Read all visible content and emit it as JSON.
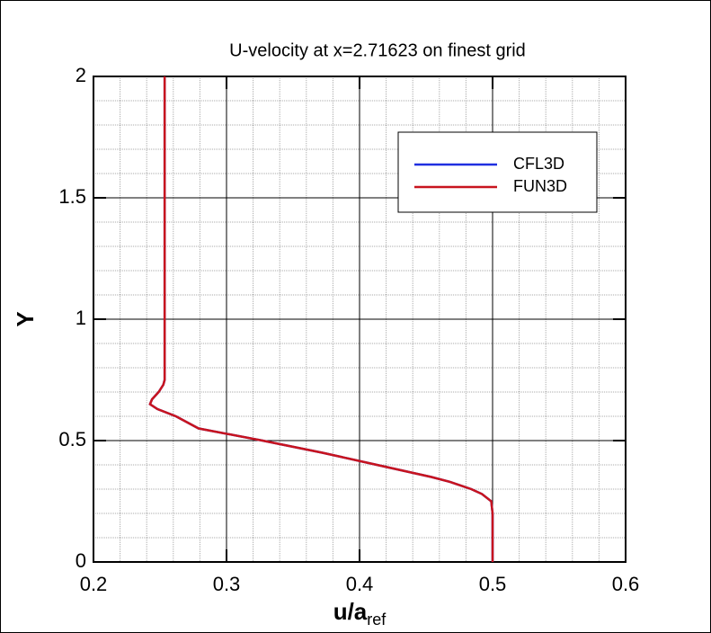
{
  "chart_data": {
    "type": "line",
    "title": "U-velocity at x=2.71623 on finest grid",
    "x_label": {
      "main": "u/a",
      "sub": "ref"
    },
    "y_label": "Y",
    "xlim": [
      0.2,
      0.6
    ],
    "xticks": [
      0.2,
      0.3,
      0.4,
      0.5,
      0.6
    ],
    "ylim": [
      0,
      2
    ],
    "yticks": [
      0,
      0.5,
      1,
      1.5,
      2
    ],
    "grid": true,
    "minor_grid_divisions": 5,
    "legend": "upper right",
    "series": [
      {
        "name": "CFL3D",
        "color": "#1f2fe0",
        "x": [
          0.5,
          0.5,
          0.499,
          0.492,
          0.484,
          0.468,
          0.454,
          0.413,
          0.372,
          0.327,
          0.279,
          0.262,
          0.248,
          0.2425,
          0.244,
          0.249,
          0.2525,
          0.2535,
          0.2535,
          0.2535,
          0.2535,
          0.2535
        ],
        "values": [
          0,
          0.2,
          0.25,
          0.28,
          0.3,
          0.33,
          0.35,
          0.4,
          0.45,
          0.5,
          0.55,
          0.6,
          0.63,
          0.65,
          0.67,
          0.7,
          0.73,
          0.75,
          0.8,
          1,
          1.5,
          2
        ]
      },
      {
        "name": "FUN3D",
        "color": "#c8141e",
        "x": [
          0.5,
          0.5,
          0.499,
          0.492,
          0.484,
          0.468,
          0.454,
          0.413,
          0.372,
          0.327,
          0.279,
          0.262,
          0.248,
          0.2425,
          0.244,
          0.249,
          0.2525,
          0.2535,
          0.2535,
          0.2535,
          0.2535,
          0.2535
        ],
        "values": [
          0,
          0.2,
          0.25,
          0.28,
          0.3,
          0.33,
          0.35,
          0.4,
          0.45,
          0.5,
          0.55,
          0.6,
          0.63,
          0.65,
          0.67,
          0.7,
          0.73,
          0.75,
          0.8,
          1,
          1.5,
          2
        ]
      }
    ]
  }
}
